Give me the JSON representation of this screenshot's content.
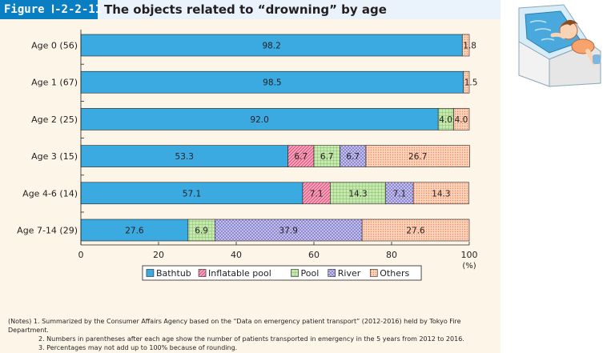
{
  "figure": {
    "label": "Figure Ⅰ-2-2-11",
    "title": "The objects related to “drowning” by age"
  },
  "chart_data": {
    "type": "bar",
    "orientation": "horizontal",
    "stacked": true,
    "title": "The objects related to “drowning” by age",
    "categories": [
      "Age 0 (56)",
      "Age 1 (67)",
      "Age 2 (25)",
      "Age 3 (15)",
      "Age 4-6 (14)",
      "Age 7-14 (29)"
    ],
    "series": [
      {
        "name": "Bathtub",
        "color": "#3aaae0",
        "pattern": "solid",
        "values": [
          98.2,
          98.5,
          92.0,
          53.3,
          57.1,
          27.6
        ]
      },
      {
        "name": "Inflatable pool",
        "color": "#f4a6bf",
        "pattern": "diag",
        "values": [
          0,
          0,
          0,
          6.7,
          7.1,
          0
        ]
      },
      {
        "name": "Pool",
        "color": "#bde3a6",
        "pattern": "grid",
        "values": [
          0,
          0,
          4.0,
          6.7,
          14.3,
          6.9
        ]
      },
      {
        "name": "River",
        "color": "#bcb8e8",
        "pattern": "check",
        "values": [
          0,
          0,
          0,
          6.7,
          7.1,
          37.9
        ]
      },
      {
        "name": "Others",
        "color": "#f8c3a6",
        "pattern": "dots",
        "values": [
          1.8,
          1.5,
          4.0,
          26.7,
          14.3,
          27.6
        ]
      }
    ],
    "xlim": [
      0,
      100
    ],
    "xticks": [
      0,
      20,
      40,
      60,
      80,
      100
    ],
    "xunit": "(%)",
    "legend": "bottom",
    "grid": false
  },
  "notes": {
    "intro": "(Notes) 1. Summarized by the Consumer Affairs Agency based on the “Data on emergency patient transport” (2012-2016) held by Tokyo Fire Department.",
    "note2": "2. Numbers in parentheses after each age show the number of patients transported in emergency in the 5 years from 2012 to 2016.",
    "note3": "3. Percentages may not add up to 100% because of rounding."
  }
}
